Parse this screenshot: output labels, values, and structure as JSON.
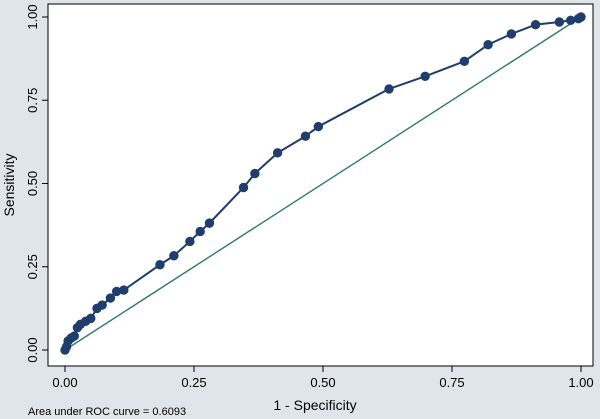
{
  "chart_data": {
    "type": "line",
    "xlabel": "1 - Specificity",
    "ylabel": "Sensitivity",
    "xlim": [
      0,
      1
    ],
    "ylim": [
      0,
      1
    ],
    "x_ticks": [
      "0.00",
      "0.25",
      "0.50",
      "0.75",
      "1.00"
    ],
    "y_ticks": [
      "0.00",
      "0.25",
      "0.50",
      "0.75",
      "1.00"
    ],
    "grid": false,
    "note": "Area under ROC curve = 0.6093",
    "series": [
      {
        "color": "#1f3d6d",
        "markers": true,
        "x": [
          0.0,
          0.003,
          0.006,
          0.012,
          0.018,
          0.024,
          0.03,
          0.04,
          0.05,
          0.062,
          0.072,
          0.088,
          0.1,
          0.114,
          0.184,
          0.211,
          0.242,
          0.262,
          0.28,
          0.346,
          0.368,
          0.412,
          0.466,
          0.491,
          0.628,
          0.698,
          0.774,
          0.82,
          0.865,
          0.912,
          0.958,
          0.98,
          0.995,
          1.0
        ],
        "y": [
          0.0,
          0.01,
          0.027,
          0.036,
          0.042,
          0.067,
          0.077,
          0.086,
          0.095,
          0.125,
          0.135,
          0.156,
          0.176,
          0.18,
          0.256,
          0.283,
          0.326,
          0.356,
          0.381,
          0.488,
          0.53,
          0.592,
          0.642,
          0.671,
          0.784,
          0.822,
          0.867,
          0.917,
          0.949,
          0.977,
          0.985,
          0.99,
          0.995,
          1.0
        ]
      },
      {
        "color": "#2e7d5b",
        "markers": false,
        "x": [
          0,
          1
        ],
        "y": [
          0,
          1
        ]
      }
    ]
  }
}
